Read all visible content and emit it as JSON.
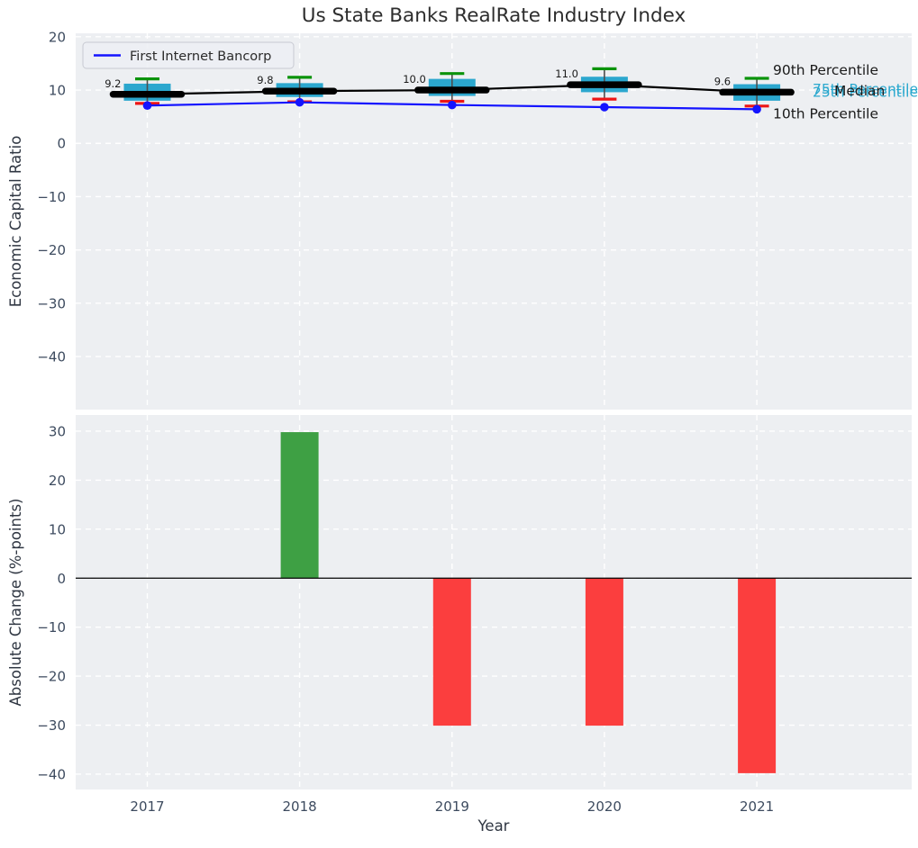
{
  "colors": {
    "background": "#ffffff",
    "axes_background": "#edeff2",
    "grid": "#ffffff",
    "tick_label": "#3d4b5f",
    "title_text": "#2d2d2d",
    "box_fill": "#2ba7ce",
    "median_line": "#000000",
    "p90_cap": "#0a930a",
    "p10_cap": "#ed1515",
    "company_line": "#1414ff",
    "bar_positive": "#3ea044",
    "bar_negative": "#fb3e3e",
    "zero_line": "#000000",
    "percentile_text_cyan": "#2aa8ce",
    "annotation_text": "#1a1a1a",
    "median_label_text": "#1a1a1a",
    "legend_background": "#eceef4",
    "legend_border": "#c8cad2",
    "legend_text": "#2b2b2b",
    "whisker_line": "#4d4d4d"
  },
  "chart_data": [
    {
      "type": "line",
      "subtype": "percentile-band-boxes-with-company-line",
      "title": "Us State Banks RealRate Industry Index",
      "ylabel": "Economic Capital Ratio",
      "x": [
        "2017",
        "2018",
        "2019",
        "2020",
        "2021"
      ],
      "series": [
        {
          "name": "First Internet Bancorp",
          "values": [
            7.1,
            7.7,
            7.2,
            6.8,
            6.4
          ]
        },
        {
          "name": "Median",
          "values": [
            9.2,
            9.8,
            10.0,
            11.0,
            9.6
          ]
        },
        {
          "name": "90th Percentile",
          "values": [
            12.1,
            12.4,
            13.1,
            14.0,
            12.2
          ]
        },
        {
          "name": "75th Percentile",
          "values": [
            11.2,
            11.3,
            12.1,
            12.5,
            11.1
          ]
        },
        {
          "name": "25th Percentile",
          "values": [
            8.0,
            8.7,
            8.9,
            9.6,
            8.0
          ]
        },
        {
          "name": "10th Percentile",
          "values": [
            7.5,
            7.8,
            7.9,
            8.3,
            7.0
          ]
        }
      ],
      "median_labels": [
        "9.2",
        "9.8",
        "10.0",
        "11.0",
        "9.6"
      ],
      "legend": {
        "position": "upper left",
        "entries": [
          "First Internet Bancorp"
        ]
      },
      "right_annotations": [
        "90th Percentile",
        "75th Percentile",
        "Median",
        "25th Percentile",
        "10th Percentile"
      ],
      "ylim": [
        -50,
        20.6
      ],
      "yticks": [
        20,
        10,
        0,
        -10,
        -20,
        -30,
        -40
      ],
      "grid": true
    },
    {
      "type": "bar",
      "ylabel": "Absolute Change (%-points)",
      "xlabel": "Year",
      "categories": [
        "2017",
        "2018",
        "2019",
        "2020",
        "2021"
      ],
      "values": [
        0,
        29.8,
        -30.1,
        -30.1,
        -39.8
      ],
      "bar_colors": [
        "none",
        "positive",
        "negative",
        "negative",
        "negative"
      ],
      "ylim": [
        -43,
        33.3
      ],
      "yticks": [
        30,
        20,
        10,
        0,
        -10,
        -20,
        -30,
        -40
      ],
      "grid": true,
      "zero_line": true
    }
  ]
}
